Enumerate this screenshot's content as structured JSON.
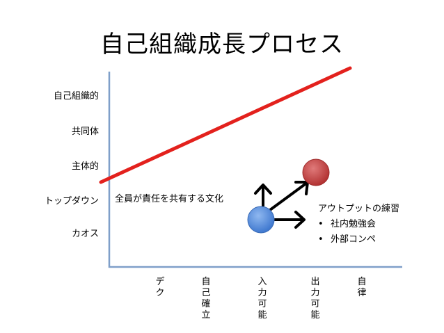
{
  "title": "自己組織成長プロセス",
  "y_levels": [
    "自己組織的",
    "共同体",
    "主体的",
    "トップダウン",
    "カオス"
  ],
  "x_stages": [
    "デク",
    "自己確立",
    "入力可能",
    "出力可能",
    "自律"
  ],
  "annotation": "全員が責任を共有する文化",
  "output_practice": {
    "heading": "アウトプットの練習",
    "items": [
      "社内勉強会",
      "外部コンペ"
    ]
  },
  "colors": {
    "trend_line": "#e3211d",
    "current_node": "#4a86d9",
    "target_node": "#c23c3c",
    "axis": "#7f9fc9",
    "arrow": "#000000"
  },
  "icons": [
    "arrow-up-icon",
    "arrow-up-right-icon",
    "arrow-right-icon"
  ]
}
